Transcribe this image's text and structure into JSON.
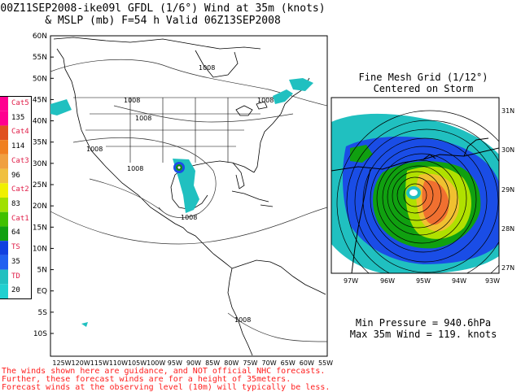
{
  "header": {
    "title_line1": "00Z11SEP2008-ike09l GFDL (1/6°) Wind at 35m (knots)",
    "title_line2": "& MSLP (mb) F=54 h Valid 06Z13SEP2008"
  },
  "main_map": {
    "lat_labels": [
      "60N",
      "55N",
      "50N",
      "45N",
      "40N",
      "35N",
      "30N",
      "25N",
      "20N",
      "15N",
      "10N",
      "5N",
      "EQ",
      "5S",
      "10S"
    ],
    "lon_labels": [
      "125W",
      "120W",
      "115W",
      "110W",
      "105W",
      "100W",
      "95W",
      "90W",
      "85W",
      "80W",
      "75W",
      "70W",
      "65W",
      "60W",
      "55W"
    ],
    "isobar_labels": [
      "1008",
      "1008",
      "1008",
      "1008",
      "1008",
      "1008",
      "1008",
      "1008"
    ]
  },
  "inset": {
    "title_line1": "Fine Mesh Grid (1/12°)",
    "title_line2": "Centered on Storm",
    "lat_labels": [
      "31N",
      "30N",
      "29N",
      "28N",
      "27N"
    ],
    "lon_labels": [
      "97W",
      "96W",
      "95W",
      "94W",
      "93W"
    ]
  },
  "stats": {
    "min_pressure": "Min Pressure = 940.6hPa",
    "max_wind": "Max 35m Wind = 119. knots"
  },
  "legend": {
    "items": [
      {
        "label": "Cat5",
        "kind": "cat"
      },
      {
        "label": "135",
        "kind": "num"
      },
      {
        "label": "Cat4",
        "kind": "cat"
      },
      {
        "label": "114",
        "kind": "num"
      },
      {
        "label": "Cat3",
        "kind": "cat"
      },
      {
        "label": "96",
        "kind": "num"
      },
      {
        "label": "Cat2",
        "kind": "cat"
      },
      {
        "label": "83",
        "kind": "num"
      },
      {
        "label": "Cat1",
        "kind": "cat"
      },
      {
        "label": "64",
        "kind": "num"
      },
      {
        "label": "TS",
        "kind": "cat"
      },
      {
        "label": "35",
        "kind": "num"
      },
      {
        "label": "TD",
        "kind": "cat"
      },
      {
        "label": "20",
        "kind": "num"
      }
    ],
    "colors": [
      "#ff0090",
      "#ff0090",
      "#e05020",
      "#f08020",
      "#f0a040",
      "#f0c040",
      "#f0f000",
      "#a0e000",
      "#40c000",
      "#10a010",
      "#1040e0",
      "#2060f0",
      "#20c0c0",
      "#20d0d0"
    ]
  },
  "disclaimer": {
    "line1": "The winds shown here are guidance, and NOT official NHC forecasts.",
    "line2": "Further, these forecast winds are for a height of 35meters.",
    "line3": "Forecast winds at the observing level (10m) will typically be less."
  },
  "colors": {
    "td": "#20c0c0",
    "ts": "#1a4de6",
    "cat1": "#10a010",
    "cat2": "#b0e000",
    "cat3": "#f0c030",
    "cat4": "#f07030",
    "cat5": "#ff0090",
    "disclaimer": "#ff2020"
  }
}
